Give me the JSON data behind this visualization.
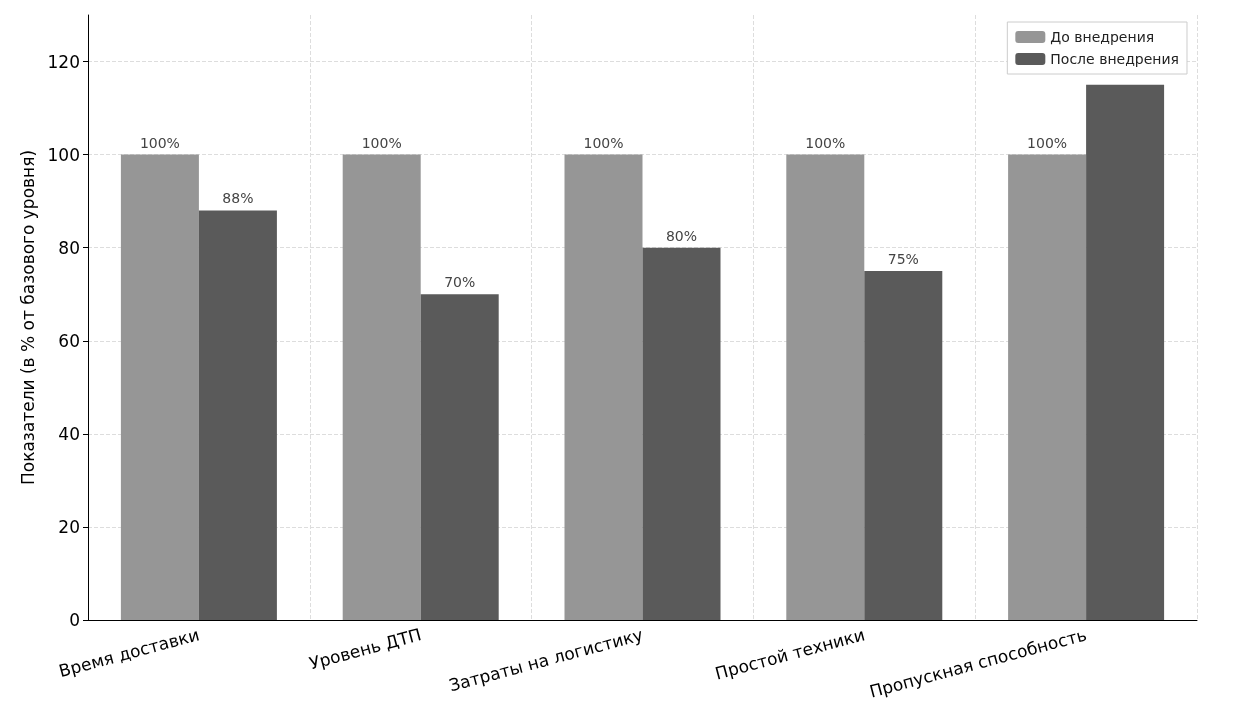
{
  "chart_data": {
    "type": "bar",
    "ylabel": "Показатели (в % от базового уровня)",
    "categories": [
      "Время доставки",
      "Уровень ДТП",
      "Затраты на логистику",
      "Простой техники",
      "Пропускная способность"
    ],
    "series": [
      {
        "name": "До внедрения",
        "color": "#969696",
        "values": [
          100,
          100,
          100,
          100,
          100
        ],
        "value_labels": [
          "100%",
          "100%",
          "100%",
          "100%",
          "100%"
        ]
      },
      {
        "name": "После внедрения",
        "color": "#5a5a5a",
        "values": [
          88,
          70,
          80,
          75,
          115
        ],
        "value_labels": [
          "88%",
          "70%",
          "80%",
          "75%",
          null
        ]
      }
    ],
    "ylim": [
      0,
      130
    ],
    "yticks": [
      0,
      20,
      40,
      60,
      80,
      100,
      120
    ],
    "grid": true,
    "legend": "top right"
  }
}
